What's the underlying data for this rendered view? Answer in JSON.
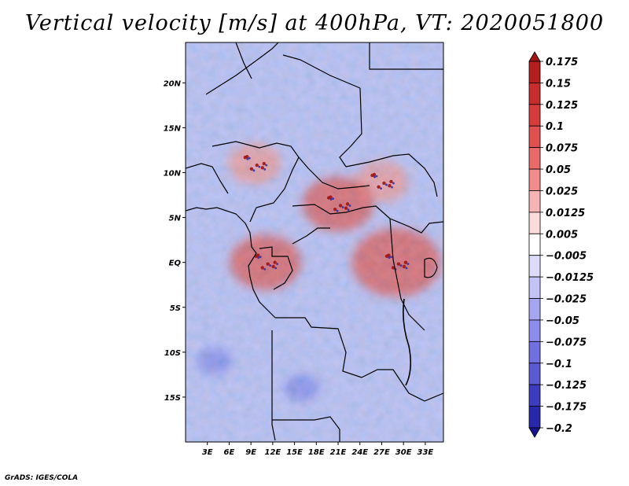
{
  "page": {
    "title": "Vertical velocity [m/s] at 400hPa, VT: 2020051800",
    "footer": "GrADS: IGES/COLA"
  },
  "chart_data": {
    "type": "heatmap",
    "title": "Vertical velocity [m/s] at 400hPa, VT: 2020051800",
    "variable": "Vertical velocity",
    "units": "m/s",
    "level": "400hPa",
    "valid_time": "2020051800",
    "xlabel": "",
    "ylabel": "",
    "xlim": [
      0,
      35.5
    ],
    "ylim": [
      -20,
      24.5
    ],
    "x_ticks": [
      {
        "value": 3,
        "label": "3E"
      },
      {
        "value": 6,
        "label": "6E"
      },
      {
        "value": 9,
        "label": "9E"
      },
      {
        "value": 12,
        "label": "12E"
      },
      {
        "value": 15,
        "label": "15E"
      },
      {
        "value": 18,
        "label": "18E"
      },
      {
        "value": 21,
        "label": "21E"
      },
      {
        "value": 24,
        "label": "24E"
      },
      {
        "value": 27,
        "label": "27E"
      },
      {
        "value": 30,
        "label": "30E"
      },
      {
        "value": 33,
        "label": "33E"
      }
    ],
    "y_ticks": [
      {
        "value": 20,
        "label": "20N"
      },
      {
        "value": 15,
        "label": "15N"
      },
      {
        "value": 10,
        "label": "10N"
      },
      {
        "value": 5,
        "label": "5N"
      },
      {
        "value": 0,
        "label": "EQ"
      },
      {
        "value": -5,
        "label": "5S"
      },
      {
        "value": -10,
        "label": "10S"
      },
      {
        "value": -15,
        "label": "15S"
      }
    ],
    "colorbar": {
      "labels": [
        "0.175",
        "0.15",
        "0.125",
        "0.1",
        "0.075",
        "0.05",
        "0.025",
        "0.0125",
        "0.005",
        "−0.005",
        "−0.0125",
        "−0.025",
        "−0.05",
        "−0.075",
        "−0.1",
        "−0.125",
        "−0.175",
        "−0.2"
      ],
      "colors": [
        "#a01414",
        "#b41e1e",
        "#c82d2d",
        "#d63c3c",
        "#e05050",
        "#ea6a6a",
        "#f08c8c",
        "#f6b4b4",
        "#fadada",
        "#ffffff",
        "#dcdcfa",
        "#c3c3f5",
        "#a5a5f0",
        "#8c8ceb",
        "#7070e0",
        "#5a5ad2",
        "#3c3cbe",
        "#2828aa",
        "#14148c"
      ]
    },
    "features": [
      {
        "name": "eastern-sahel-ascent",
        "lon": 27,
        "lat": 9,
        "value": 0.075
      },
      {
        "name": "chad-ascent",
        "lon": 21,
        "lat": 6.5,
        "value": 0.1
      },
      {
        "name": "cameroon-ascent",
        "lon": 9.5,
        "lat": 11,
        "value": 0.075
      },
      {
        "name": "gabon-ascent",
        "lon": 11,
        "lat": 0,
        "value": 0.1
      },
      {
        "name": "lake-victoria-ascent",
        "lon": 29,
        "lat": 0,
        "value": 0.125
      },
      {
        "name": "south-atlantic-subsidence",
        "lon": 4,
        "lat": -11,
        "value": -0.05
      },
      {
        "name": "angola-subsidence",
        "lon": 16,
        "lat": -14,
        "value": -0.05
      }
    ]
  }
}
